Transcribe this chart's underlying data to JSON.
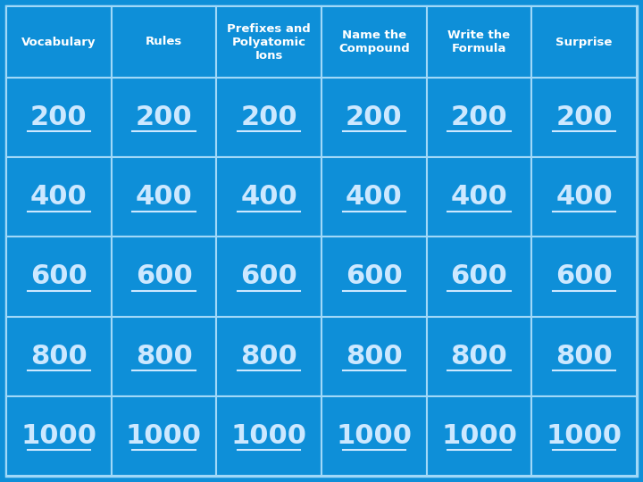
{
  "columns": [
    "Vocabulary",
    "Rules",
    "Prefixes and\nPolyatomic\nIons",
    "Name the\nCompound",
    "Write the\nFormula",
    "Surprise"
  ],
  "rows": [
    "200",
    "400",
    "600",
    "800",
    "1000"
  ],
  "bg_color": "#0e8fd8",
  "cell_bg_color": "#0e8fd8",
  "border_color": "#a0d8f8",
  "header_text_color": "#ffffff",
  "value_text_color": "#cce8ff",
  "outer_bg_color": "#0e8fd8",
  "num_cols": 6,
  "num_rows": 5,
  "border_lw": 1.5,
  "header_fontsize": 9.5,
  "value_fontsize": 22,
  "fig_width": 7.2,
  "fig_height": 5.4
}
